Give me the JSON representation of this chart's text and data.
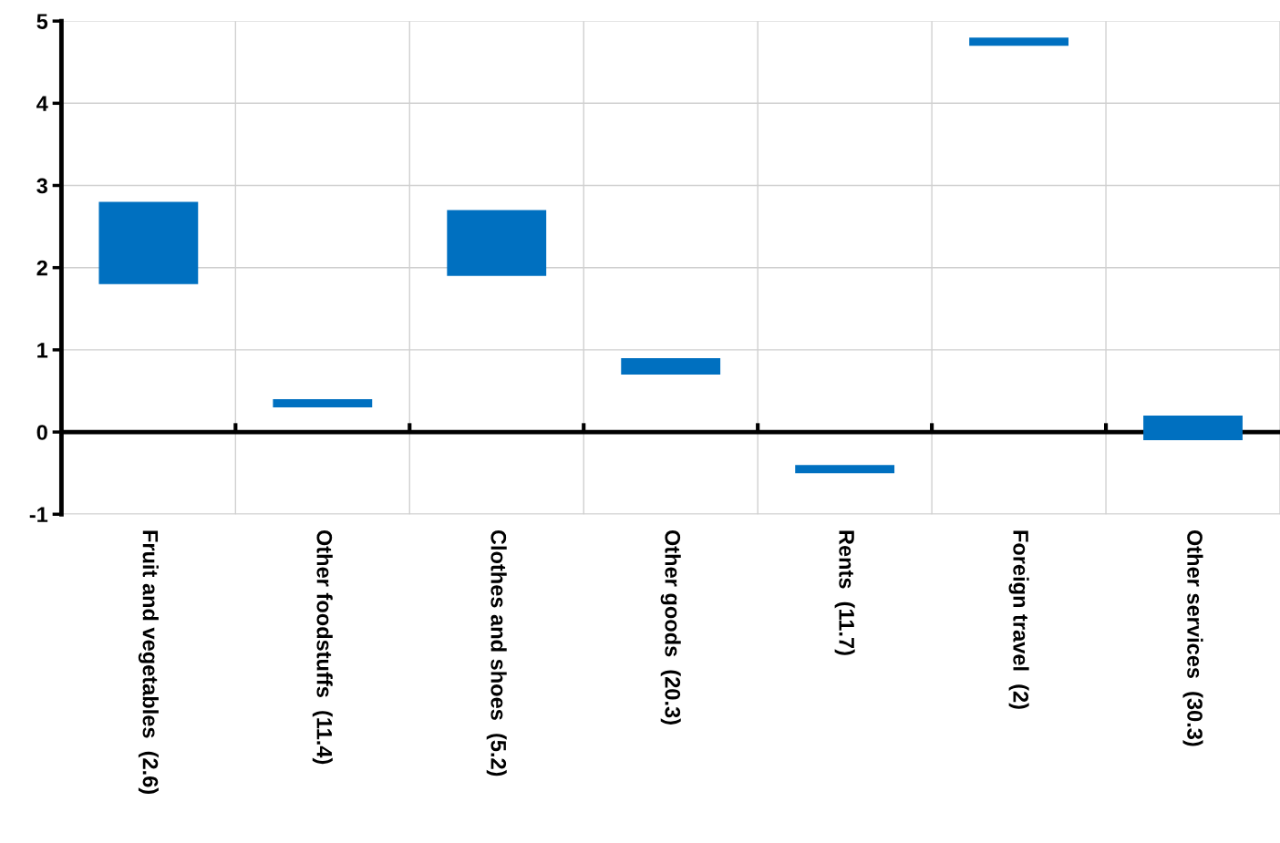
{
  "chart_data": {
    "type": "bar",
    "categories": [
      "Fruit and vegetables  (2.6)",
      "Other foodstuffs  (11.4)",
      "Clothes and shoes  (5.2)",
      "Other goods  (20.3)",
      "Rents  (11.7)",
      "Foreign travel  (2)",
      "Other services  (30.3)"
    ],
    "base": [
      1.8,
      0.3,
      1.9,
      0.7,
      -0.5,
      4.7,
      -0.1
    ],
    "values": [
      1.0,
      0.1,
      0.8,
      0.2,
      0.1,
      0.1,
      0.3
    ],
    "color": "#0070c0",
    "ylim": [
      -1,
      5
    ],
    "yticks": [
      -1,
      0,
      1,
      2,
      3,
      4,
      5
    ],
    "grid": true
  }
}
